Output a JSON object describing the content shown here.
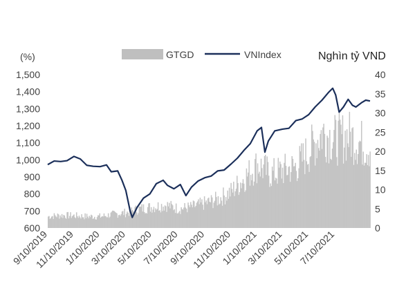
{
  "chart_data": {
    "type": "bar+line",
    "title": "",
    "left_axis": {
      "unit_label": "(%)",
      "ylim": [
        600,
        1500
      ],
      "ticks": [
        "1,500",
        "1,400",
        "1,300",
        "1,200",
        "1,100",
        "1,000",
        "900",
        "800",
        "700",
        "600"
      ],
      "tick_values": [
        1500,
        1400,
        1300,
        1200,
        1100,
        1000,
        900,
        800,
        700,
        600
      ]
    },
    "right_axis": {
      "unit_label": "Nghìn tỷ VND",
      "ylim": [
        0,
        40
      ],
      "ticks": [
        "40",
        "35",
        "30",
        "25",
        "20",
        "15",
        "10",
        "5",
        "0"
      ],
      "tick_values": [
        40,
        35,
        30,
        25,
        20,
        15,
        10,
        5,
        0
      ]
    },
    "x_axis": {
      "start": "2019-09-10",
      "end": "2021-09-30",
      "tick_labels": [
        "9/10/2019",
        "11/10/2019",
        "1/10/2020",
        "3/10/2020",
        "5/10/2020",
        "7/10/2020",
        "9/10/2020",
        "11/10/2020",
        "1/10/2021",
        "3/10/2021",
        "5/10/2021",
        "7/10/2021"
      ],
      "tick_dates": [
        "2019-09-10",
        "2019-11-10",
        "2020-01-10",
        "2020-03-10",
        "2020-05-10",
        "2020-07-10",
        "2020-09-10",
        "2020-11-10",
        "2021-01-10",
        "2021-03-10",
        "2021-05-10",
        "2021-07-10"
      ]
    },
    "legend": {
      "placement": "top-center",
      "items": [
        {
          "name": "GTGD",
          "kind": "bar",
          "color": "#bfbfbf"
        },
        {
          "name": "VNIndex",
          "kind": "line",
          "color": "#1b2f5a"
        }
      ]
    },
    "series": [
      {
        "name": "VNIndex",
        "axis": "left",
        "color": "#1b2f5a",
        "points": [
          [
            "2019-09-10",
            972
          ],
          [
            "2019-09-25",
            993
          ],
          [
            "2019-10-10",
            990
          ],
          [
            "2019-10-25",
            995
          ],
          [
            "2019-11-10",
            1020
          ],
          [
            "2019-11-25",
            1005
          ],
          [
            "2019-12-10",
            968
          ],
          [
            "2019-12-25",
            962
          ],
          [
            "2020-01-10",
            960
          ],
          [
            "2020-01-25",
            970
          ],
          [
            "2020-02-05",
            930
          ],
          [
            "2020-02-20",
            935
          ],
          [
            "2020-03-01",
            880
          ],
          [
            "2020-03-10",
            820
          ],
          [
            "2020-03-20",
            700
          ],
          [
            "2020-03-25",
            662
          ],
          [
            "2020-04-05",
            720
          ],
          [
            "2020-04-20",
            775
          ],
          [
            "2020-05-05",
            800
          ],
          [
            "2020-05-20",
            860
          ],
          [
            "2020-06-05",
            880
          ],
          [
            "2020-06-15",
            850
          ],
          [
            "2020-06-30",
            830
          ],
          [
            "2020-07-15",
            855
          ],
          [
            "2020-07-28",
            790
          ],
          [
            "2020-08-10",
            840
          ],
          [
            "2020-08-25",
            875
          ],
          [
            "2020-09-10",
            895
          ],
          [
            "2020-09-25",
            905
          ],
          [
            "2020-10-10",
            935
          ],
          [
            "2020-10-25",
            940
          ],
          [
            "2020-11-10",
            975
          ],
          [
            "2020-11-25",
            1010
          ],
          [
            "2020-12-10",
            1055
          ],
          [
            "2020-12-25",
            1095
          ],
          [
            "2021-01-10",
            1170
          ],
          [
            "2021-01-20",
            1190
          ],
          [
            "2021-01-28",
            1045
          ],
          [
            "2021-02-05",
            1110
          ],
          [
            "2021-02-20",
            1170
          ],
          [
            "2021-03-10",
            1180
          ],
          [
            "2021-03-25",
            1185
          ],
          [
            "2021-04-10",
            1230
          ],
          [
            "2021-04-25",
            1240
          ],
          [
            "2021-05-10",
            1265
          ],
          [
            "2021-05-25",
            1310
          ],
          [
            "2021-06-10",
            1350
          ],
          [
            "2021-06-25",
            1395
          ],
          [
            "2021-07-05",
            1420
          ],
          [
            "2021-07-12",
            1380
          ],
          [
            "2021-07-20",
            1280
          ],
          [
            "2021-07-30",
            1310
          ],
          [
            "2021-08-10",
            1355
          ],
          [
            "2021-08-20",
            1320
          ],
          [
            "2021-08-28",
            1310
          ],
          [
            "2021-09-10",
            1335
          ],
          [
            "2021-09-20",
            1350
          ],
          [
            "2021-09-30",
            1345
          ]
        ]
      },
      {
        "name": "GTGD",
        "axis": "right",
        "color": "#bfbfbf",
        "points": [
          [
            "2019-09-10",
            3.0
          ],
          [
            "2019-10-10",
            3.3
          ],
          [
            "2019-11-10",
            3.2
          ],
          [
            "2019-12-10",
            3.0
          ],
          [
            "2020-01-10",
            3.0
          ],
          [
            "2020-02-10",
            3.6
          ],
          [
            "2020-03-10",
            4.0
          ],
          [
            "2020-04-10",
            5.0
          ],
          [
            "2020-05-10",
            5.5
          ],
          [
            "2020-06-10",
            6.0
          ],
          [
            "2020-07-10",
            5.0
          ],
          [
            "2020-08-10",
            5.5
          ],
          [
            "2020-09-10",
            6.5
          ],
          [
            "2020-10-10",
            7.5
          ],
          [
            "2020-11-10",
            9.5
          ],
          [
            "2020-12-10",
            13.0
          ],
          [
            "2021-01-10",
            16.5
          ],
          [
            "2021-02-10",
            14.0
          ],
          [
            "2021-03-10",
            15.0
          ],
          [
            "2021-04-10",
            16.0
          ],
          [
            "2021-05-10",
            20.0
          ],
          [
            "2021-06-10",
            25.0
          ],
          [
            "2021-07-10",
            23.0
          ],
          [
            "2021-08-10",
            24.0
          ],
          [
            "2021-09-10",
            22.0
          ],
          [
            "2021-09-30",
            21.0
          ]
        ]
      }
    ]
  }
}
